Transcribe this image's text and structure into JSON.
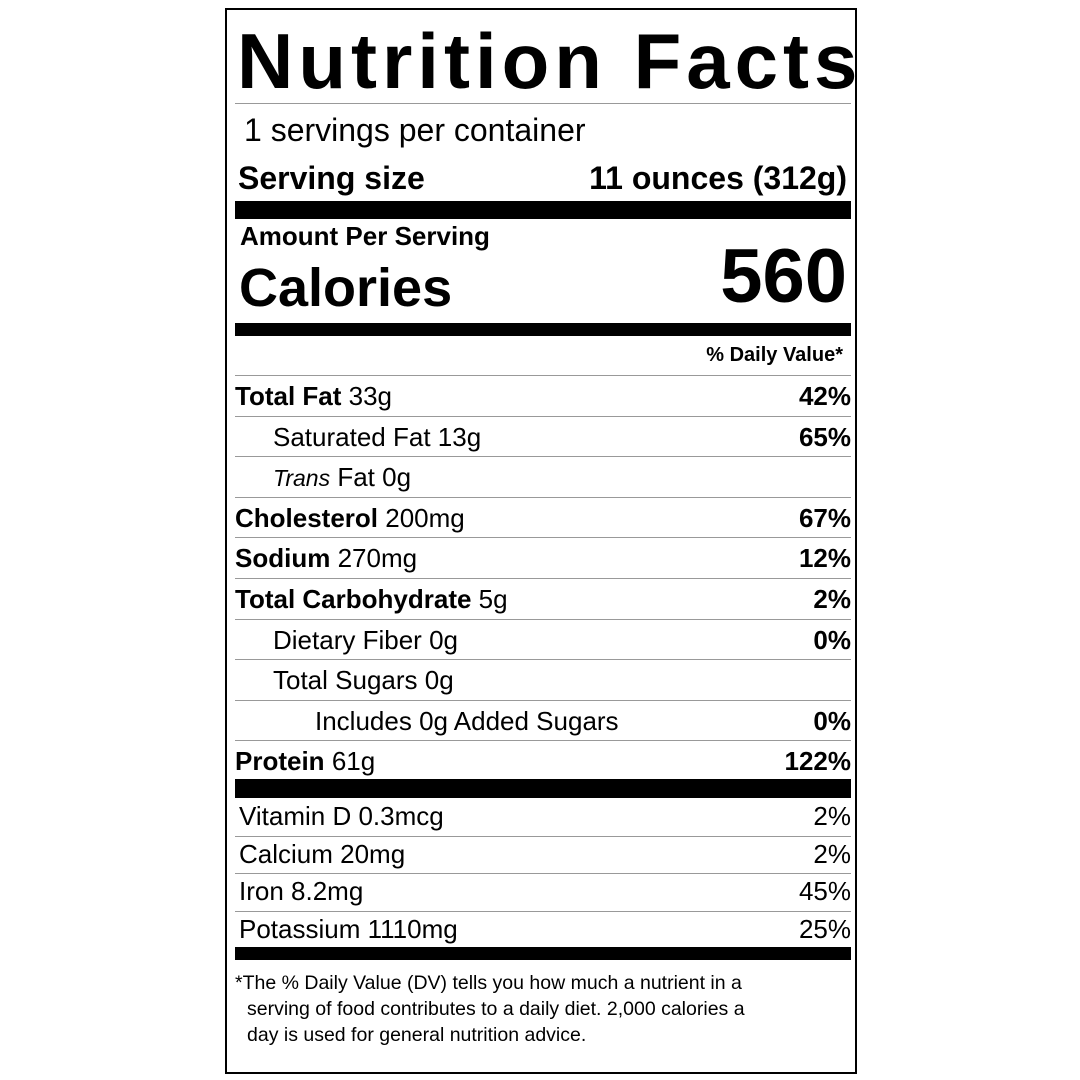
{
  "title": "Nutrition Facts",
  "servings_per_container": "1 servings per container",
  "serving_size_label": "Serving size",
  "serving_size_value": "11 ounces (312g)",
  "amount_per_serving": "Amount Per Serving",
  "calories_label": "Calories",
  "calories_value": "560",
  "daily_value_header": "% Daily Value*",
  "nutrients": [
    {
      "name": "Total Fat",
      "amount": "33g",
      "dv": "42%",
      "bold": true,
      "indent": 0
    },
    {
      "name": "Saturated Fat",
      "amount": "13g",
      "dv": "65%",
      "bold": false,
      "indent": 1
    },
    {
      "name": "Trans",
      "name_suffix": "Fat",
      "amount": "0g",
      "dv": "",
      "bold": false,
      "indent": 1,
      "italic": true
    },
    {
      "name": "Cholesterol",
      "amount": "200mg",
      "dv": "67%",
      "bold": true,
      "indent": 0
    },
    {
      "name": "Sodium",
      "amount": "270mg",
      "dv": "12%",
      "bold": true,
      "indent": 0
    },
    {
      "name": "Total Carbohydrate",
      "amount": "5g",
      "dv": "2%",
      "bold": true,
      "indent": 0
    },
    {
      "name": "Dietary Fiber",
      "amount": "0g",
      "dv": "0%",
      "bold": false,
      "indent": 1
    },
    {
      "name": "Total Sugars",
      "amount": "0g",
      "dv": "",
      "bold": false,
      "indent": 1
    },
    {
      "name": "Includes 0g Added Sugars",
      "amount": "",
      "dv": "0%",
      "bold": false,
      "indent": 2
    },
    {
      "name": "Protein",
      "amount": "61g",
      "dv": "122%",
      "bold": true,
      "indent": 0
    }
  ],
  "vitamins": [
    {
      "name": "Vitamin D 0.3mcg",
      "dv": "2%"
    },
    {
      "name": "Calcium 20mg",
      "dv": "2%"
    },
    {
      "name": "Iron 8.2mg",
      "dv": "45%"
    },
    {
      "name": "Potassium 1110mg",
      "dv": "25%"
    }
  ],
  "footnote": {
    "line1": "*The % Daily Value (DV) tells you how much a nutrient in a",
    "line2": "serving of food contributes to a daily diet. 2,000 calories a",
    "line3": "day is used for general nutrition advice."
  }
}
